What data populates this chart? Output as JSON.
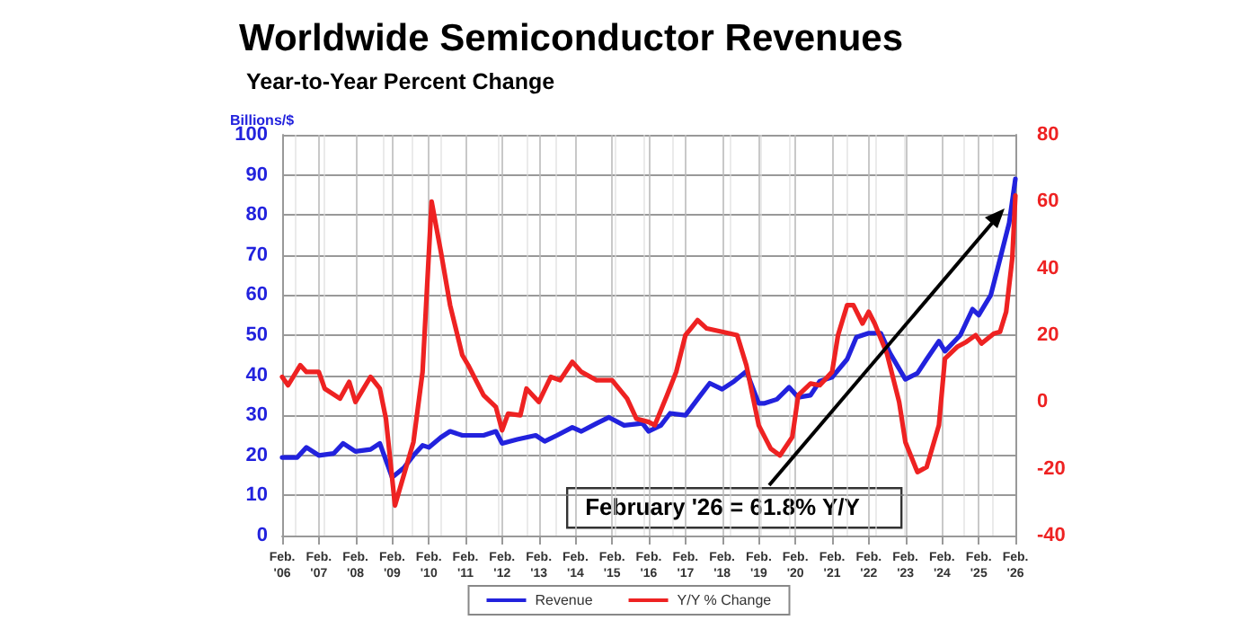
{
  "chart_data": {
    "type": "line",
    "title": "Worldwide Semiconductor Revenues",
    "subtitle": "Year-to-Year Percent Change",
    "ylabel": "Billions/$",
    "annotations": [
      "February '26 = 61.8% Y/Y"
    ],
    "xlim": [
      "2006-02",
      "2026-02"
    ],
    "xticks": [
      {
        "value": "2006-02",
        "label": "Feb.\n'06"
      },
      {
        "value": "2007-02",
        "label": "Feb.\n'07"
      },
      {
        "value": "2008-02",
        "label": "Feb.\n'08"
      },
      {
        "value": "2009-02",
        "label": "Feb.\n'09"
      },
      {
        "value": "2010-02",
        "label": "Feb.\n'10"
      },
      {
        "value": "2011-02",
        "label": "Feb.\n'11"
      },
      {
        "value": "2012-02",
        "label": "Feb.\n'12"
      },
      {
        "value": "2013-02",
        "label": "Feb.\n'13"
      },
      {
        "value": "2014-02",
        "label": "Feb.\n'14"
      },
      {
        "value": "2015-02",
        "label": "Feb.\n'15"
      },
      {
        "value": "2016-02",
        "label": "Feb.\n'16"
      },
      {
        "value": "2017-02",
        "label": "Feb.\n'17"
      },
      {
        "value": "2018-02",
        "label": "Feb.\n'18"
      },
      {
        "value": "2019-02",
        "label": "Feb.\n'19"
      },
      {
        "value": "2020-02",
        "label": "Feb.\n'20"
      },
      {
        "value": "2021-02",
        "label": "Feb.\n'21"
      },
      {
        "value": "2022-02",
        "label": "Feb.\n'22"
      },
      {
        "value": "2023-02",
        "label": "Feb.\n'23"
      },
      {
        "value": "2024-02",
        "label": "Feb.\n'24"
      },
      {
        "value": "2025-02",
        "label": "Feb.\n'25"
      },
      {
        "value": "2026-02",
        "label": "Feb.\n'26"
      }
    ],
    "ylim": [
      0,
      100
    ],
    "yticks": [
      0,
      10,
      20,
      30,
      40,
      50,
      60,
      70,
      80,
      90,
      100
    ],
    "y2lim": [
      -40,
      80
    ],
    "y2ticks": [
      -40,
      -20,
      0,
      20,
      40,
      60,
      80
    ],
    "grid": true,
    "legend": "bottom",
    "marker": "none",
    "line_style": "solid",
    "series": [
      {
        "name": "Revenue",
        "color": "#2222dd",
        "x": [
          "2006-02",
          "2006-07",
          "2006-10",
          "2007-02",
          "2007-07",
          "2007-10",
          "2008-02",
          "2008-07",
          "2008-10",
          "2009-02",
          "2009-06",
          "2009-09",
          "2009-12",
          "2010-02",
          "2010-06",
          "2010-09",
          "2011-01",
          "2011-08",
          "2011-12",
          "2012-02",
          "2012-07",
          "2013-01",
          "2013-04",
          "2013-08",
          "2014-01",
          "2014-04",
          "2014-09",
          "2015-01",
          "2015-06",
          "2015-12",
          "2016-02",
          "2016-06",
          "2016-09",
          "2017-02",
          "2017-07",
          "2017-10",
          "2018-02",
          "2018-06",
          "2018-10",
          "2019-02",
          "2019-04",
          "2019-08",
          "2019-12",
          "2020-03",
          "2020-07",
          "2020-10",
          "2021-02",
          "2021-07",
          "2021-10",
          "2022-02",
          "2022-06",
          "2022-09",
          "2023-02",
          "2023-06",
          "2023-09",
          "2024-01",
          "2024-03",
          "2024-08",
          "2024-12",
          "2025-02",
          "2025-06",
          "2025-09",
          "2025-12",
          "2026-02"
        ],
        "values": [
          19.5,
          19.5,
          22,
          20,
          20.5,
          23,
          21,
          21.5,
          23,
          14.5,
          17,
          20,
          22.5,
          22,
          24.5,
          26,
          25,
          25,
          26,
          23,
          24,
          25,
          23.5,
          25,
          27,
          26,
          28,
          29.5,
          27.5,
          28,
          26,
          27.5,
          30.5,
          30,
          35,
          38,
          36.5,
          38.5,
          41,
          33,
          33,
          34,
          37,
          34.5,
          35,
          38.5,
          39.5,
          44,
          49.5,
          50.5,
          50.5,
          45.5,
          39,
          40.5,
          44,
          48.5,
          46,
          50,
          56.5,
          55,
          60,
          69,
          78,
          89
        ]
      },
      {
        "name": "Y/Y % Change",
        "color": "#ee2222",
        "axis": "y2",
        "x": [
          "2006-02",
          "2006-04",
          "2006-08",
          "2006-10",
          "2007-02",
          "2007-04",
          "2007-09",
          "2007-12",
          "2008-02",
          "2008-07",
          "2008-10",
          "2008-12",
          "2009-03",
          "2009-09",
          "2009-12",
          "2010-03",
          "2010-06",
          "2010-09",
          "2011-01",
          "2011-03",
          "2011-08",
          "2011-12",
          "2012-02",
          "2012-04",
          "2012-08",
          "2012-10",
          "2013-02",
          "2013-06",
          "2013-09",
          "2014-01",
          "2014-04",
          "2014-09",
          "2015-02",
          "2015-07",
          "2015-10",
          "2016-02",
          "2016-04",
          "2016-08",
          "2016-11",
          "2017-02",
          "2017-06",
          "2017-09",
          "2018-02",
          "2018-07",
          "2018-10",
          "2019-02",
          "2019-06",
          "2019-09",
          "2020-01",
          "2020-03",
          "2020-07",
          "2020-10",
          "2021-02",
          "2021-04",
          "2021-07",
          "2021-09",
          "2021-12",
          "2022-02",
          "2022-04",
          "2022-08",
          "2022-12",
          "2023-02",
          "2023-06",
          "2023-09",
          "2024-01",
          "2024-03",
          "2024-07",
          "2024-10",
          "2025-01",
          "2025-03",
          "2025-07",
          "2025-09",
          "2025-11",
          "2026-01",
          "2026-02"
        ],
        "values": [
          7.5,
          5,
          11,
          9,
          9,
          4,
          1,
          6,
          0,
          7.5,
          4,
          -5,
          -31,
          -12,
          9,
          60,
          45,
          29,
          14,
          11,
          2,
          -1.5,
          -8.5,
          -3.5,
          -4,
          4,
          0,
          7.5,
          6.5,
          12,
          9,
          6.5,
          6.5,
          1,
          -5,
          -6,
          -7,
          2,
          9,
          20,
          24.5,
          22,
          21,
          20,
          11,
          -7,
          -14,
          -16,
          -10.5,
          2,
          5.5,
          5,
          9,
          20,
          29,
          29,
          23.5,
          27,
          23.5,
          14.5,
          0,
          -12,
          -21,
          -19.5,
          -7,
          13,
          16.5,
          18,
          20,
          17.5,
          20.5,
          21,
          27,
          43,
          61.8
        ]
      }
    ]
  }
}
